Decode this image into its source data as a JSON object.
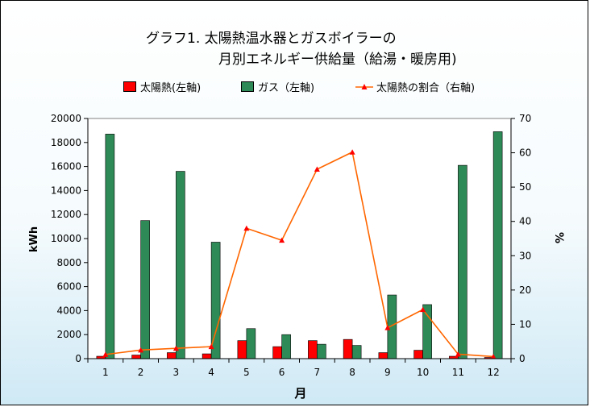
{
  "chart_data": {
    "type": "bar",
    "title_line1": "グラフ1.  太陽熱温水器とガスボイラーの",
    "title_line2": "月別エネルギー供給量（給湯・暖房用)",
    "xlabel": "月",
    "ylabel_left": "kWh",
    "ylabel_right": "%",
    "categories": [
      "1",
      "2",
      "3",
      "4",
      "5",
      "6",
      "7",
      "8",
      "9",
      "10",
      "11",
      "12"
    ],
    "y_left_range": [
      0,
      20000
    ],
    "y_left_ticks": [
      "0",
      "2000",
      "4000",
      "6000",
      "8000",
      "10000",
      "12000",
      "14000",
      "16000",
      "18000",
      "20000"
    ],
    "y_right_range": [
      0,
      70
    ],
    "y_right_ticks": [
      "0",
      "10",
      "20",
      "30",
      "40",
      "50",
      "60",
      "70"
    ],
    "series": [
      {
        "name": "太陽熱(左軸)",
        "type": "bar",
        "axis": "left",
        "color": "#ff0000",
        "values": [
          200,
          300,
          500,
          400,
          1500,
          1000,
          1500,
          1600,
          500,
          700,
          200,
          100
        ]
      },
      {
        "name": "ガス（左軸)",
        "type": "bar",
        "axis": "left",
        "color": "#2e8b57",
        "values": [
          18700,
          11500,
          15600,
          9700,
          2500,
          2000,
          1200,
          1100,
          5300,
          4500,
          16100,
          18900
        ]
      },
      {
        "name": "太陽熱の割合（右軸)",
        "type": "line",
        "axis": "right",
        "color": "#ff6600",
        "values": [
          1.2,
          2.5,
          3.0,
          3.5,
          38,
          34.5,
          55.2,
          60.2,
          9.0,
          14.3,
          1.3,
          0.6
        ]
      }
    ],
    "legend_position": "top",
    "grid": false
  }
}
